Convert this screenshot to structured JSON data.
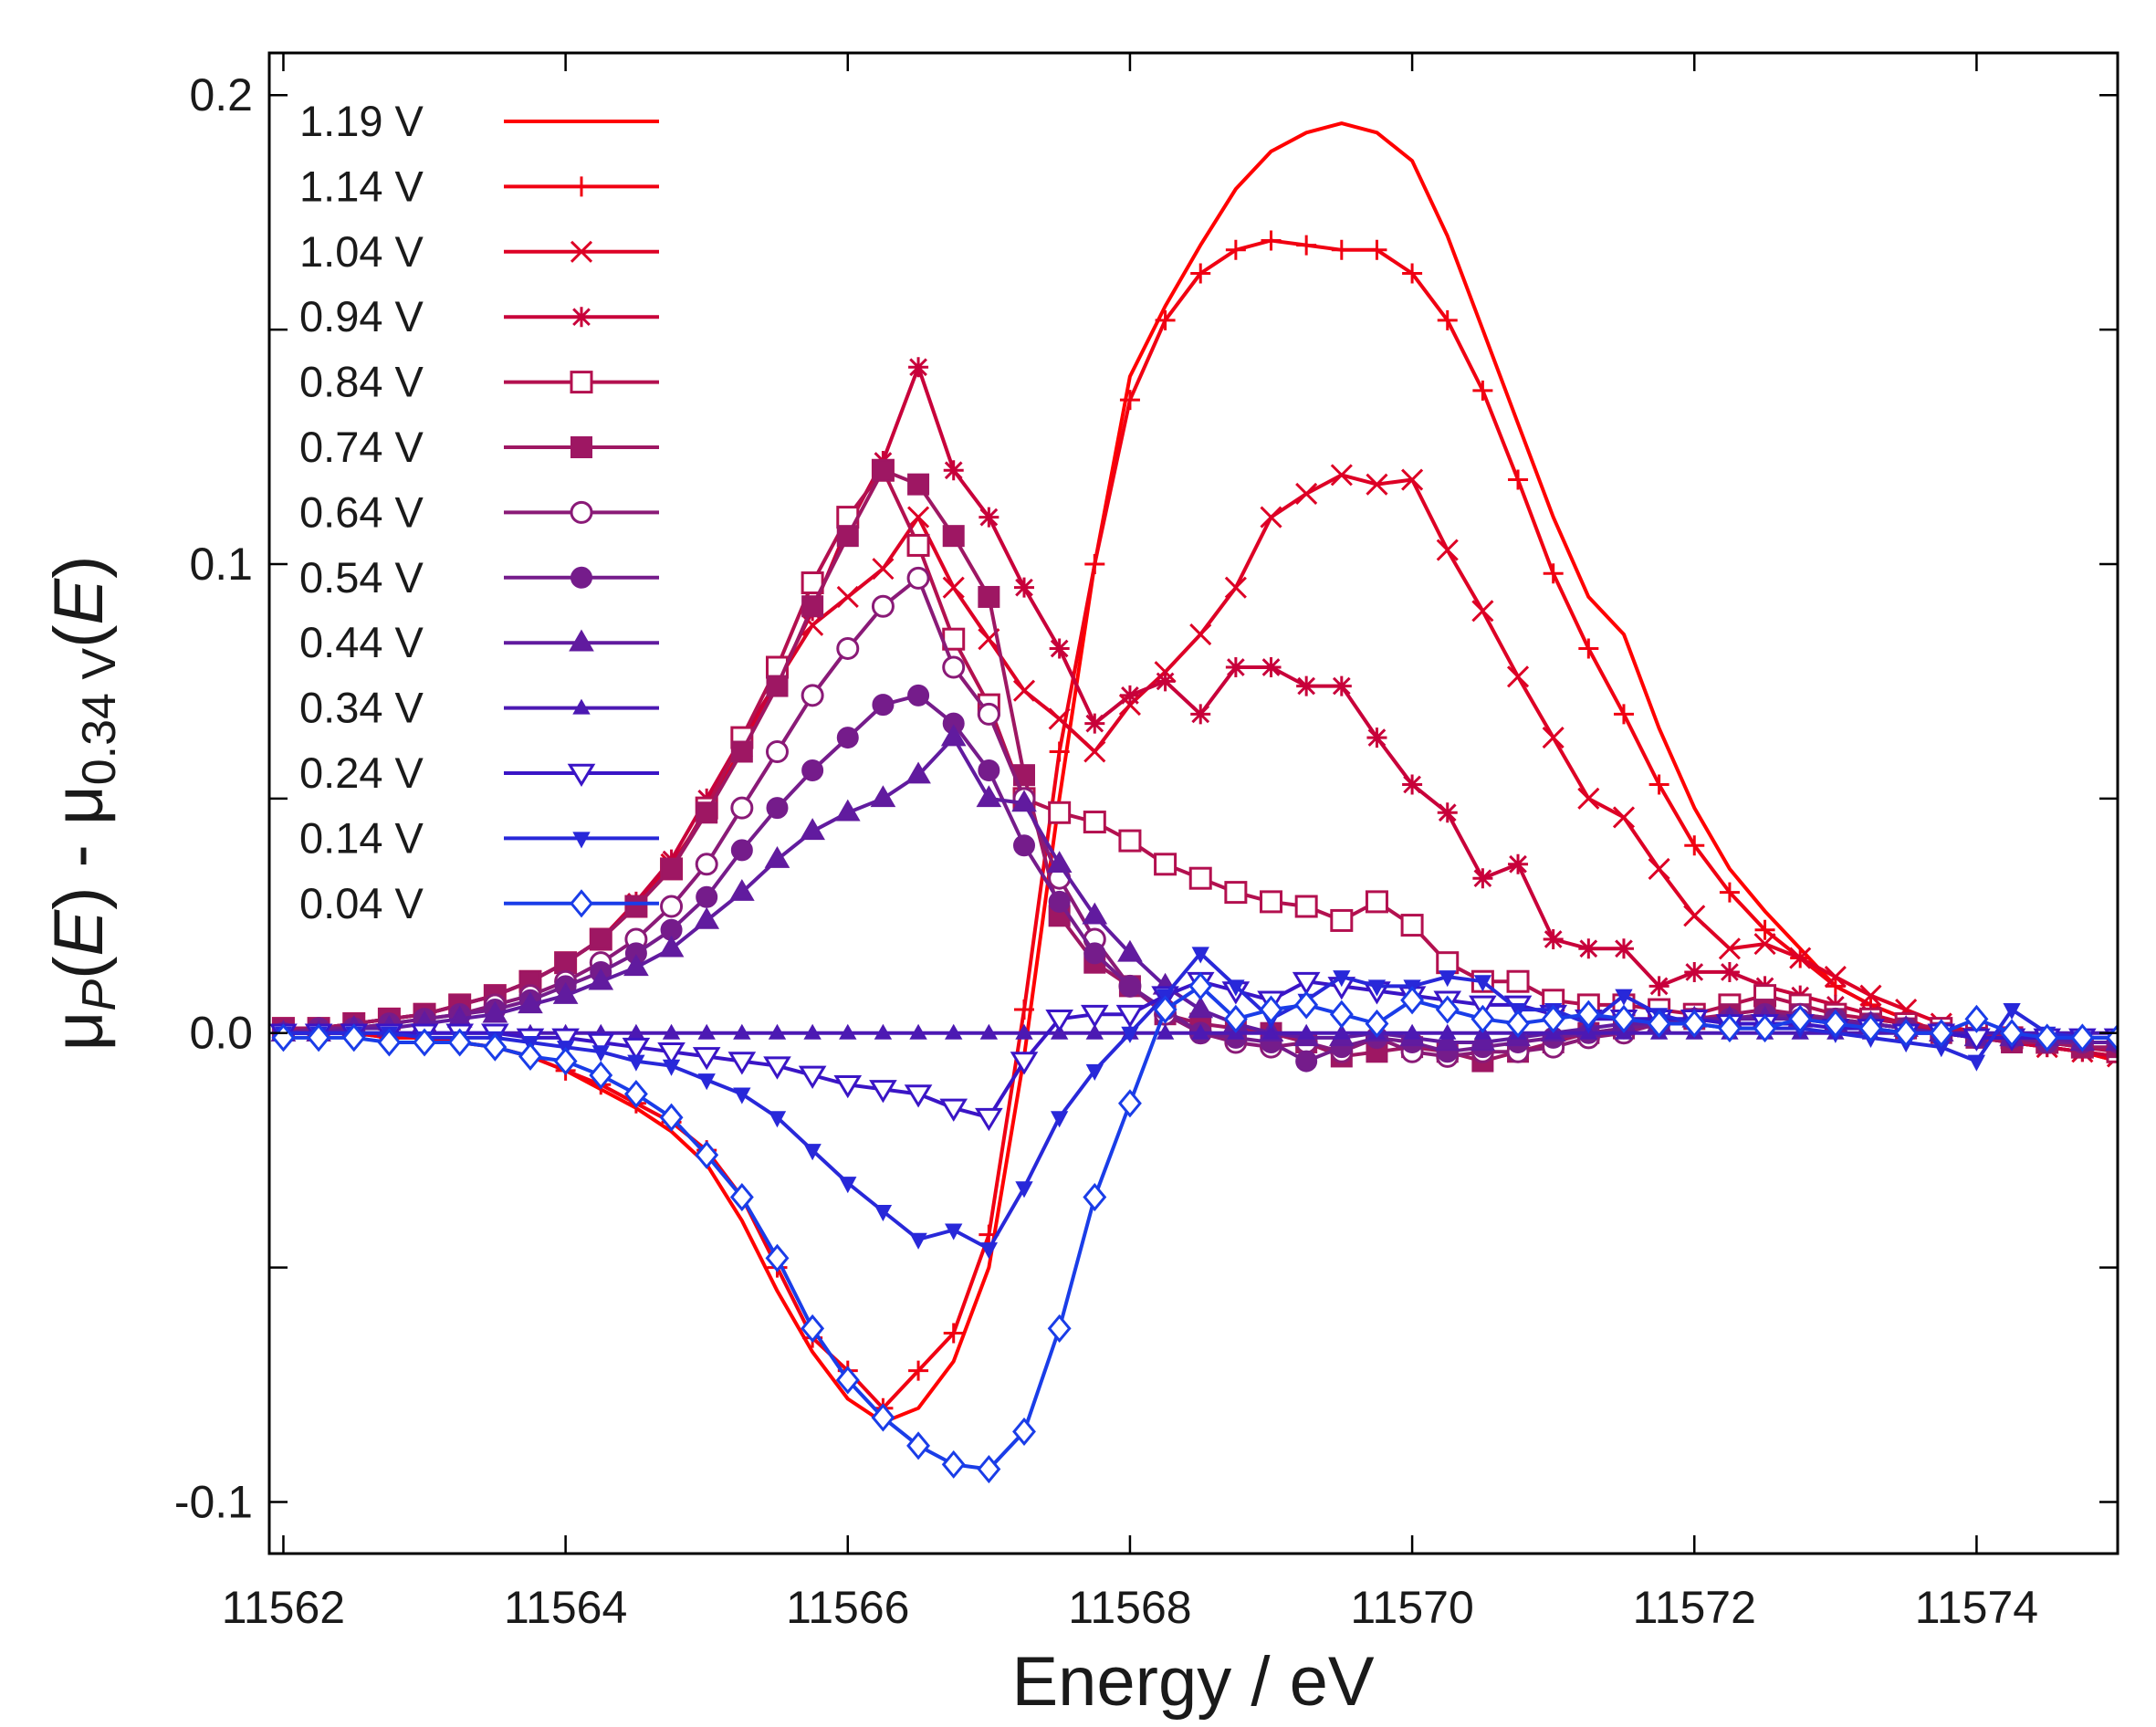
{
  "chart_data": {
    "type": "line",
    "title": "",
    "xlabel": "Energy / eV",
    "ylabel": "μP(E) - μ0.34 V(E)",
    "ylabel_parts": {
      "mu1": "μ",
      "sub1": "P",
      "paren1": "(",
      "e1": "E",
      "close1": ")",
      "minus": " - ",
      "mu2": "μ",
      "sub2": "0.34 V",
      "paren2": "(",
      "e2": "E",
      "close2": ")"
    },
    "xlim": [
      11561.9,
      11575.0
    ],
    "ylim": [
      -0.111,
      0.209
    ],
    "xticks": [
      11562,
      11564,
      11566,
      11568,
      11570,
      11572,
      11574
    ],
    "xtick_labels": [
      "11562",
      "11564",
      "11566",
      "11568",
      "11570",
      "11572",
      "11574"
    ],
    "yticks": [
      -0.1,
      -0.05,
      0.0,
      0.05,
      0.1,
      0.15,
      0.2
    ],
    "ytick_labels": [
      "-0.1",
      "",
      "0.0",
      "",
      "0.1",
      "",
      "0.2"
    ],
    "grid": false,
    "legend_position": "top-left",
    "x": [
      11562.0,
      11562.25,
      11562.5,
      11562.75,
      11563.0,
      11563.25,
      11563.5,
      11563.75,
      11564.0,
      11564.25,
      11564.5,
      11564.75,
      11565.0,
      11565.25,
      11565.5,
      11565.75,
      11566.0,
      11566.25,
      11566.5,
      11566.75,
      11567.0,
      11567.25,
      11567.5,
      11567.75,
      11568.0,
      11568.25,
      11568.5,
      11568.75,
      11569.0,
      11569.25,
      11569.5,
      11569.75,
      11570.0,
      11570.25,
      11570.5,
      11570.75,
      11571.0,
      11571.25,
      11571.5,
      11571.75,
      11572.0,
      11572.25,
      11572.5,
      11572.75,
      11573.0,
      11573.25,
      11573.5,
      11573.75,
      11574.0,
      11574.25,
      11574.5,
      11574.75,
      11575.0
    ],
    "series": [
      {
        "name": "1.19 V",
        "color": "#ff0000",
        "marker": "none",
        "values": [
          0.0,
          0.0,
          0.0,
          -0.001,
          -0.001,
          -0.002,
          -0.003,
          -0.005,
          -0.008,
          -0.012,
          -0.016,
          -0.021,
          -0.028,
          -0.04,
          -0.055,
          -0.068,
          -0.078,
          -0.083,
          -0.08,
          -0.07,
          -0.05,
          -0.005,
          0.05,
          0.1,
          0.14,
          0.155,
          0.168,
          0.18,
          0.188,
          0.192,
          0.194,
          0.192,
          0.186,
          0.17,
          0.15,
          0.13,
          0.11,
          0.093,
          0.085,
          0.065,
          0.048,
          0.035,
          0.026,
          0.018,
          0.01,
          0.006,
          0.003,
          0.0,
          -0.001,
          -0.002,
          -0.003,
          -0.004,
          -0.006
        ]
      },
      {
        "name": "1.14 V",
        "color": "#f00012",
        "marker": "plus",
        "values": [
          0.0,
          0.0,
          0.0,
          -0.001,
          -0.001,
          -0.002,
          -0.003,
          -0.005,
          -0.008,
          -0.011,
          -0.015,
          -0.019,
          -0.025,
          -0.035,
          -0.05,
          -0.065,
          -0.072,
          -0.08,
          -0.072,
          -0.064,
          -0.043,
          0.005,
          0.06,
          0.1,
          0.135,
          0.152,
          0.162,
          0.167,
          0.169,
          0.168,
          0.167,
          0.167,
          0.162,
          0.152,
          0.137,
          0.118,
          0.098,
          0.082,
          0.068,
          0.053,
          0.04,
          0.03,
          0.022,
          0.016,
          0.01,
          0.006,
          0.003,
          0.0,
          -0.001,
          -0.002,
          -0.003,
          -0.004,
          -0.006
        ]
      },
      {
        "name": "1.04 V",
        "color": "#dd0025",
        "marker": "x",
        "values": [
          0.001,
          0.001,
          0.002,
          0.003,
          0.004,
          0.006,
          0.008,
          0.011,
          0.015,
          0.02,
          0.027,
          0.036,
          0.047,
          0.061,
          0.075,
          0.087,
          0.093,
          0.099,
          0.11,
          0.095,
          0.084,
          0.073,
          0.067,
          0.06,
          0.07,
          0.077,
          0.085,
          0.095,
          0.11,
          0.115,
          0.119,
          0.117,
          0.118,
          0.103,
          0.09,
          0.076,
          0.063,
          0.05,
          0.046,
          0.035,
          0.025,
          0.018,
          0.019,
          0.016,
          0.012,
          0.008,
          0.005,
          0.002,
          0.0,
          -0.002,
          -0.003,
          -0.004,
          -0.005
        ]
      },
      {
        "name": "0.94 V",
        "color": "#c8003a",
        "marker": "star",
        "values": [
          0.001,
          0.001,
          0.002,
          0.003,
          0.004,
          0.006,
          0.008,
          0.011,
          0.015,
          0.02,
          0.028,
          0.037,
          0.05,
          0.063,
          0.075,
          0.09,
          0.108,
          0.122,
          0.142,
          0.12,
          0.11,
          0.095,
          0.082,
          0.066,
          0.072,
          0.075,
          0.068,
          0.078,
          0.078,
          0.074,
          0.074,
          0.063,
          0.053,
          0.047,
          0.033,
          0.036,
          0.02,
          0.018,
          0.018,
          0.01,
          0.013,
          0.013,
          0.01,
          0.008,
          0.006,
          0.004,
          0.002,
          0.0,
          -0.001,
          -0.002,
          -0.003,
          -0.004,
          -0.005
        ]
      },
      {
        "name": "0.84 V",
        "color": "#b3104f",
        "marker": "square-open",
        "values": [
          0.001,
          0.001,
          0.002,
          0.003,
          0.004,
          0.006,
          0.008,
          0.011,
          0.015,
          0.02,
          0.027,
          0.035,
          0.048,
          0.063,
          0.078,
          0.096,
          0.11,
          0.12,
          0.104,
          0.084,
          0.07,
          0.05,
          0.047,
          0.045,
          0.041,
          0.036,
          0.033,
          0.03,
          0.028,
          0.027,
          0.024,
          0.028,
          0.023,
          0.015,
          0.011,
          0.011,
          0.007,
          0.006,
          0.006,
          0.005,
          0.004,
          0.006,
          0.008,
          0.006,
          0.004,
          0.003,
          0.002,
          0.001,
          0.0,
          -0.001,
          -0.002,
          -0.003,
          -0.004
        ]
      },
      {
        "name": "0.74 V",
        "color": "#9e1763",
        "marker": "square-filled",
        "values": [
          0.001,
          0.001,
          0.002,
          0.003,
          0.004,
          0.006,
          0.008,
          0.011,
          0.015,
          0.02,
          0.027,
          0.035,
          0.047,
          0.06,
          0.074,
          0.091,
          0.106,
          0.12,
          0.117,
          0.106,
          0.093,
          0.055,
          0.025,
          0.015,
          0.01,
          0.004,
          0.002,
          0.001,
          0.0,
          -0.002,
          -0.005,
          -0.004,
          -0.003,
          -0.004,
          -0.006,
          -0.004,
          -0.002,
          0.0,
          0.001,
          0.002,
          0.003,
          0.004,
          0.005,
          0.004,
          0.003,
          0.002,
          0.001,
          0.0,
          -0.001,
          -0.002,
          -0.002,
          -0.003,
          -0.003
        ]
      },
      {
        "name": "0.64 V",
        "color": "#8a1a77",
        "marker": "circle-open",
        "values": [
          0.0,
          0.001,
          0.001,
          0.002,
          0.003,
          0.004,
          0.006,
          0.008,
          0.011,
          0.015,
          0.02,
          0.027,
          0.036,
          0.048,
          0.06,
          0.072,
          0.082,
          0.091,
          0.097,
          0.078,
          0.068,
          0.05,
          0.033,
          0.02,
          0.01,
          0.004,
          0.0,
          -0.002,
          -0.003,
          -0.002,
          -0.004,
          -0.001,
          -0.004,
          -0.005,
          -0.004,
          -0.004,
          -0.003,
          -0.001,
          0.0,
          0.002,
          0.003,
          0.003,
          0.004,
          0.004,
          0.003,
          0.002,
          0.001,
          0.0,
          -0.001,
          -0.001,
          -0.002,
          -0.002,
          -0.002
        ]
      },
      {
        "name": "0.54 V",
        "color": "#751c8b",
        "marker": "circle-filled",
        "values": [
          0.0,
          0.001,
          0.001,
          0.002,
          0.003,
          0.004,
          0.005,
          0.007,
          0.01,
          0.013,
          0.017,
          0.022,
          0.029,
          0.039,
          0.048,
          0.056,
          0.063,
          0.07,
          0.072,
          0.066,
          0.056,
          0.04,
          0.028,
          0.017,
          0.01,
          0.005,
          0.0,
          -0.001,
          -0.002,
          -0.006,
          -0.003,
          -0.001,
          -0.002,
          -0.004,
          -0.003,
          -0.002,
          -0.001,
          0.0,
          0.001,
          0.002,
          0.003,
          0.003,
          0.004,
          0.003,
          0.003,
          0.002,
          0.001,
          0.0,
          -0.001,
          -0.001,
          -0.002,
          -0.002,
          -0.002
        ]
      },
      {
        "name": "0.44 V",
        "color": "#611b9f",
        "marker": "triangle-up-open",
        "values": [
          0.0,
          0.0,
          0.001,
          0.001,
          0.002,
          0.003,
          0.004,
          0.006,
          0.008,
          0.011,
          0.014,
          0.018,
          0.024,
          0.03,
          0.037,
          0.043,
          0.047,
          0.05,
          0.055,
          0.063,
          0.05,
          0.049,
          0.036,
          0.025,
          0.017,
          0.01,
          0.005,
          0.002,
          0.0,
          -0.001,
          -0.001,
          0.0,
          -0.001,
          -0.002,
          -0.002,
          -0.001,
          0.0,
          0.001,
          0.002,
          0.002,
          0.003,
          0.003,
          0.003,
          0.003,
          0.002,
          0.002,
          0.001,
          0.0,
          -0.001,
          -0.001,
          -0.001,
          -0.002,
          -0.002
        ]
      },
      {
        "name": "0.34 V",
        "color": "#4c19b3",
        "marker": "triangle-up-small",
        "values": [
          0.0,
          0.0,
          0.0,
          0.0,
          0.0,
          0.0,
          0.0,
          0.0,
          0.0,
          0.0,
          0.0,
          0.0,
          0.0,
          0.0,
          0.0,
          0.0,
          0.0,
          0.0,
          0.0,
          0.0,
          0.0,
          0.0,
          0.0,
          0.0,
          0.0,
          0.0,
          0.0,
          0.0,
          0.0,
          0.0,
          0.0,
          0.0,
          0.0,
          0.0,
          0.0,
          0.0,
          0.0,
          0.0,
          0.0,
          0.0,
          0.0,
          0.0,
          0.0,
          0.0,
          0.0,
          0.0,
          0.0,
          0.0,
          0.0,
          0.0,
          0.0,
          0.0,
          0.0
        ]
      },
      {
        "name": "0.24 V",
        "color": "#3a15c6",
        "marker": "triangle-down-open",
        "values": [
          0.0,
          0.0,
          0.0,
          0.0,
          0.0,
          0.0,
          0.0,
          -0.001,
          -0.001,
          -0.002,
          -0.003,
          -0.004,
          -0.005,
          -0.006,
          -0.007,
          -0.009,
          -0.011,
          -0.012,
          -0.013,
          -0.016,
          -0.018,
          -0.006,
          0.003,
          0.004,
          0.004,
          0.008,
          0.011,
          0.009,
          0.007,
          0.011,
          0.01,
          0.009,
          0.008,
          0.007,
          0.006,
          0.006,
          0.004,
          0.003,
          0.003,
          0.003,
          0.003,
          0.002,
          0.002,
          0.002,
          0.001,
          0.001,
          0.0,
          0.0,
          -0.001,
          -0.001,
          -0.001,
          -0.001,
          -0.001
        ]
      },
      {
        "name": "0.14 V",
        "color": "#2828d9",
        "marker": "triangle-down-filled",
        "values": [
          0.0,
          0.0,
          0.0,
          0.0,
          -0.001,
          -0.001,
          -0.001,
          -0.002,
          -0.003,
          -0.004,
          -0.006,
          -0.007,
          -0.01,
          -0.013,
          -0.018,
          -0.025,
          -0.032,
          -0.038,
          -0.044,
          -0.042,
          -0.046,
          -0.033,
          -0.018,
          -0.008,
          0.0,
          0.008,
          0.017,
          0.01,
          0.003,
          0.007,
          0.012,
          0.01,
          0.01,
          0.012,
          0.011,
          0.005,
          0.005,
          0.002,
          0.008,
          0.004,
          0.002,
          0.001,
          0.001,
          0.001,
          0.0,
          -0.001,
          -0.002,
          -0.003,
          -0.006,
          0.005,
          0.0,
          -0.001,
          -0.001
        ]
      },
      {
        "name": "0.04 V",
        "color": "#1a3de8",
        "marker": "diamond-open",
        "values": [
          -0.001,
          -0.001,
          -0.001,
          -0.002,
          -0.002,
          -0.002,
          -0.003,
          -0.005,
          -0.006,
          -0.009,
          -0.013,
          -0.018,
          -0.026,
          -0.035,
          -0.048,
          -0.063,
          -0.074,
          -0.082,
          -0.088,
          -0.092,
          -0.093,
          -0.085,
          -0.063,
          -0.035,
          -0.015,
          0.005,
          0.01,
          0.003,
          0.005,
          0.006,
          0.004,
          0.002,
          0.007,
          0.005,
          0.003,
          0.002,
          0.003,
          0.004,
          0.003,
          0.002,
          0.002,
          0.001,
          0.001,
          0.003,
          0.002,
          0.001,
          0.0,
          0.0,
          0.003,
          0.0,
          -0.001,
          -0.001,
          -0.001
        ]
      }
    ]
  }
}
